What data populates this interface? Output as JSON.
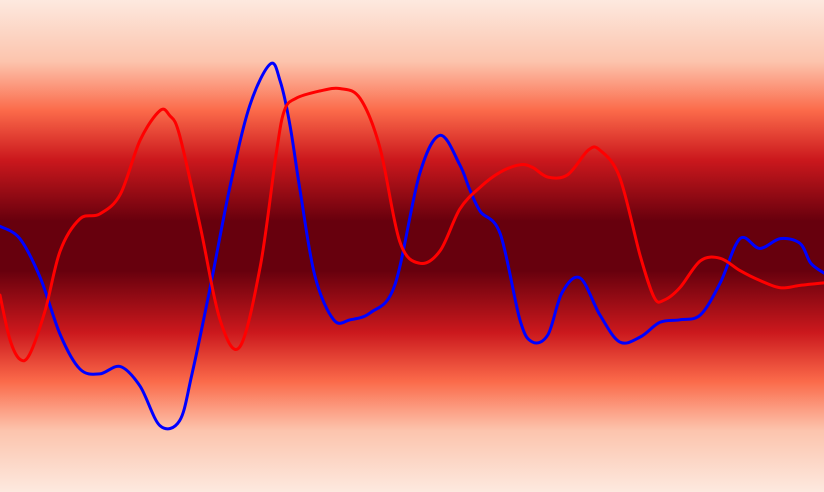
{
  "chart_data": {
    "type": "line",
    "title": "",
    "xlabel": "",
    "ylabel": "",
    "xlim": [
      0,
      100
    ],
    "ylim": [
      -1,
      1
    ],
    "grid": false,
    "legend": "none",
    "background": {
      "type": "horizontal-gradient-band",
      "stops": [
        {
          "y": 1.0,
          "color": "#fde9df"
        },
        {
          "y": 0.75,
          "color": "#fcc4ad"
        },
        {
          "y": 0.55,
          "color": "#fb6a4a"
        },
        {
          "y": 0.35,
          "color": "#cb181d"
        },
        {
          "y": 0.1,
          "color": "#67000d"
        },
        {
          "y": -0.1,
          "color": "#67000d"
        },
        {
          "y": -0.35,
          "color": "#cb181d"
        },
        {
          "y": -0.55,
          "color": "#fb6a4a"
        },
        {
          "y": -0.75,
          "color": "#fcc4ad"
        },
        {
          "y": -1.0,
          "color": "#fde9df"
        }
      ]
    },
    "series": [
      {
        "color": "#0000ff",
        "x": [
          0,
          2.4,
          4.9,
          7.3,
          9.7,
          12.1,
          14.6,
          17.0,
          19.4,
          21.8,
          23.3,
          25.5,
          27.9,
          30.3,
          32.8,
          34.0,
          35.2,
          36.4,
          38.2,
          40.5,
          42.5,
          45.0,
          47.9,
          50.9,
          53.4,
          55.8,
          57.0,
          58.3,
          60.7,
          63.1,
          64.6,
          66.5,
          68.2,
          70.4,
          72.8,
          75.2,
          77.7,
          80.1,
          82.5,
          85.0,
          87.4,
          89.8,
          92.2,
          94.7,
          97.1,
          98.4,
          100
        ],
        "y": [
          0.08,
          0.03,
          -0.13,
          -0.36,
          -0.5,
          -0.52,
          -0.49,
          -0.57,
          -0.73,
          -0.71,
          -0.52,
          -0.17,
          0.24,
          0.57,
          0.74,
          0.67,
          0.49,
          0.23,
          -0.12,
          -0.3,
          -0.3,
          -0.27,
          -0.16,
          0.29,
          0.45,
          0.33,
          0.23,
          0.14,
          0.05,
          -0.3,
          -0.39,
          -0.36,
          -0.19,
          -0.13,
          -0.28,
          -0.39,
          -0.37,
          -0.31,
          -0.3,
          -0.28,
          -0.15,
          0.03,
          -0.01,
          0.03,
          0.01,
          -0.07,
          -0.11
        ]
      },
      {
        "color": "#ff0000",
        "x": [
          0,
          1.2,
          2.4,
          3.6,
          5.5,
          7.3,
          9.7,
          12.1,
          14.6,
          17.0,
          19.4,
          20.6,
          21.8,
          24.3,
          26.7,
          29.1,
          31.6,
          33.5,
          34.5,
          35.9,
          38.8,
          41.3,
          43.7,
          46.1,
          48.5,
          50.9,
          53.4,
          55.8,
          58.3,
          60.7,
          63.1,
          64.6,
          66.5,
          68.9,
          71.4,
          72.8,
          75.2,
          77.7,
          79.4,
          80.6,
          82.5,
          85.0,
          87.4,
          89.8,
          92.2,
          94.7,
          97.1,
          100
        ],
        "y": [
          -0.2,
          -0.38,
          -0.46,
          -0.44,
          -0.26,
          -0.02,
          0.11,
          0.13,
          0.21,
          0.43,
          0.55,
          0.53,
          0.45,
          0.08,
          -0.3,
          -0.41,
          -0.08,
          0.37,
          0.55,
          0.6,
          0.63,
          0.64,
          0.6,
          0.4,
          0.02,
          -0.07,
          -0.02,
          0.15,
          0.24,
          0.3,
          0.33,
          0.32,
          0.28,
          0.29,
          0.39,
          0.39,
          0.28,
          -0.04,
          -0.21,
          -0.22,
          -0.17,
          -0.06,
          -0.05,
          -0.1,
          -0.14,
          -0.17,
          -0.16,
          -0.15
        ]
      }
    ]
  }
}
